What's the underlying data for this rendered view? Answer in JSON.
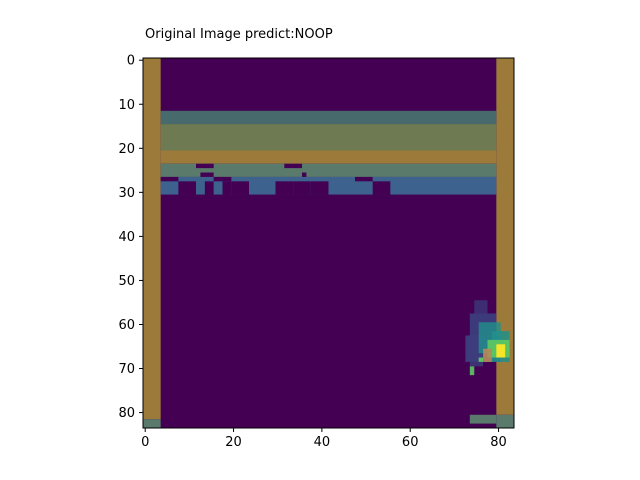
{
  "chart_data": {
    "type": "heatmap",
    "title": "Original Image predict:NOOP",
    "xlabel": "",
    "ylabel": "",
    "image_size": [
      84,
      84
    ],
    "xlim": [
      -0.5,
      83.5
    ],
    "ylim": [
      83.5,
      -0.5
    ],
    "x_ticks": [
      0,
      20,
      40,
      60,
      80
    ],
    "y_ticks": [
      0,
      10,
      20,
      30,
      40,
      50,
      60,
      70,
      80
    ],
    "colors": {
      "background": "#440154",
      "wall": "#9c7a3a",
      "brick_row_top": "#476a6c",
      "brick_row_mid": "#6d7a52",
      "brick_row_orange": "#9c7a3a",
      "brick_row_lower": "#5a7a6c",
      "brick_row_blue": "#3d628d",
      "paddle": "#5a7a6c",
      "saliency": [
        "#3b528b",
        "#21918c",
        "#5ec962",
        "#fde725"
      ]
    },
    "regions": [
      {
        "name": "left-wall",
        "x": [
          0,
          3.5
        ],
        "y": [
          -0.5,
          83.5
        ]
      },
      {
        "name": "right-wall",
        "x": [
          79.5,
          83.5
        ],
        "y": [
          -0.5,
          83.5
        ]
      },
      {
        "name": "brick-rows",
        "x": [
          3.5,
          79.5
        ],
        "y": [
          11.5,
          30.5
        ]
      },
      {
        "name": "paddle",
        "x": [
          73.5,
          79.5
        ],
        "y": [
          80.5,
          82.5
        ]
      },
      {
        "name": "saliency-blob",
        "x": [
          72,
          83
        ],
        "y": [
          54,
          71
        ]
      }
    ],
    "legend": null,
    "grid": false
  }
}
